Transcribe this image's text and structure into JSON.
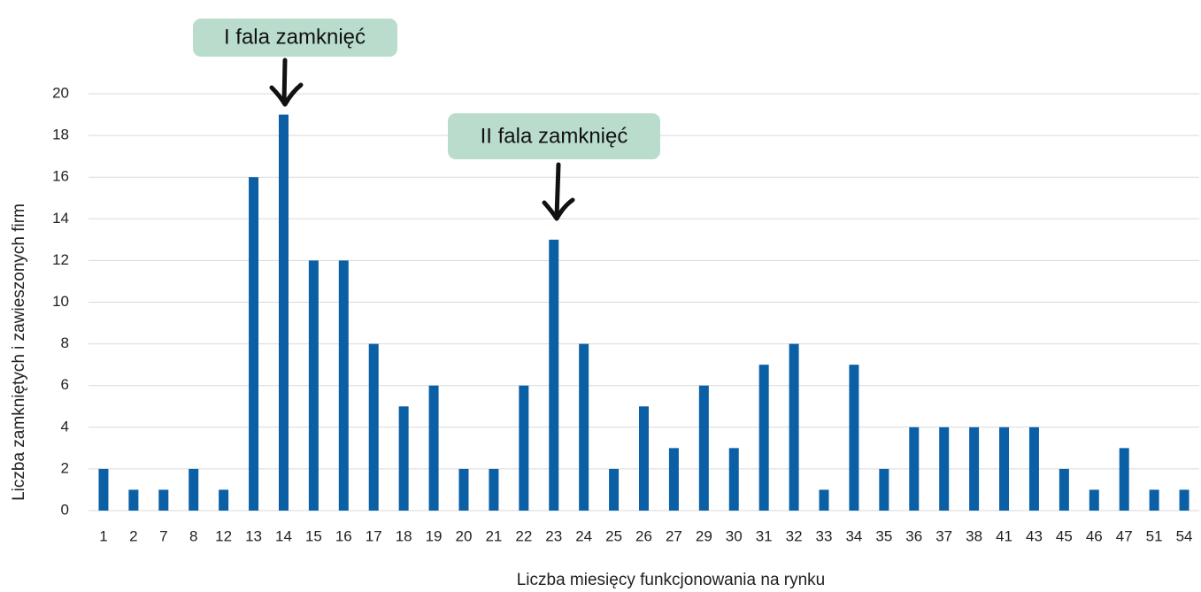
{
  "chart_data": {
    "type": "bar",
    "x_label": "Liczba miesięcy funkcjonowania na rynku",
    "y_label": "Liczba zamkniętych i zawieszonych firm",
    "categories": [
      "1",
      "2",
      "7",
      "8",
      "12",
      "13",
      "14",
      "15",
      "16",
      "17",
      "18",
      "19",
      "20",
      "21",
      "22",
      "23",
      "24",
      "25",
      "26",
      "27",
      "29",
      "30",
      "31",
      "32",
      "33",
      "34",
      "35",
      "36",
      "37",
      "38",
      "41",
      "43",
      "45",
      "46",
      "47",
      "51",
      "54"
    ],
    "values": [
      2,
      1,
      1,
      2,
      1,
      16,
      19,
      12,
      12,
      8,
      5,
      6,
      2,
      2,
      6,
      13,
      8,
      2,
      5,
      3,
      6,
      3,
      7,
      8,
      1,
      7,
      2,
      4,
      4,
      4,
      4,
      4,
      2,
      1,
      3,
      1,
      1
    ],
    "color": "#0b5fa5",
    "ylim": [
      0,
      20
    ],
    "yticks": [
      0,
      2,
      4,
      6,
      8,
      10,
      12,
      14,
      16,
      18,
      20
    ],
    "grid": true,
    "annotations": [
      "I fala zamknięć",
      "II fala zamknięć"
    ]
  }
}
